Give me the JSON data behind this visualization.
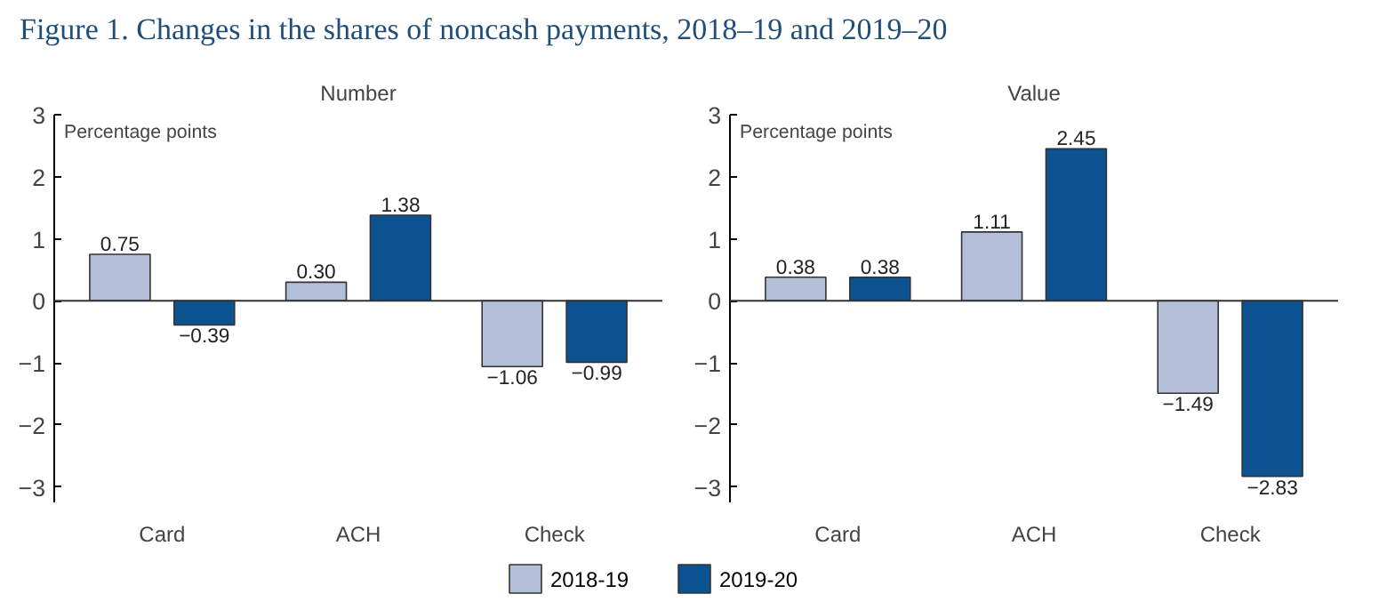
{
  "chart_data": [
    {
      "type": "bar",
      "title": "Figure 1. Changes in the shares of noncash payments, 2018–19 and 2019–20",
      "subtitle": "Number",
      "ylabel": "Percentage points",
      "categories": [
        "Card",
        "ACH",
        "Check"
      ],
      "series": [
        {
          "name": "2018-19",
          "color": "#b4c0da",
          "values": [
            0.75,
            0.3,
            -1.06
          ],
          "value_labels": [
            "0.75",
            "0.30",
            "−1.06"
          ]
        },
        {
          "name": "2019-20",
          "color": "#0c5290",
          "values": [
            -0.39,
            1.38,
            -0.99
          ],
          "value_labels": [
            "−0.39",
            "1.38",
            "−0.99"
          ]
        }
      ],
      "ylim": [
        -3.25,
        3
      ],
      "yticks": [
        -3,
        -2,
        -1,
        0,
        1,
        2,
        3
      ],
      "legend": "bottom"
    },
    {
      "type": "bar",
      "subtitle": "Value",
      "ylabel": "Percentage points",
      "categories": [
        "Card",
        "ACH",
        "Check"
      ],
      "series": [
        {
          "name": "2018-19",
          "color": "#b4c0da",
          "values": [
            0.38,
            1.11,
            -1.49
          ],
          "value_labels": [
            "0.38",
            "1.11",
            "−1.49"
          ]
        },
        {
          "name": "2019-20",
          "color": "#0c5290",
          "values": [
            0.38,
            2.45,
            -2.83
          ],
          "value_labels": [
            "0.38",
            "2.45",
            "−2.83"
          ]
        }
      ],
      "ylim": [
        -3.25,
        3
      ],
      "yticks": [
        -3,
        -2,
        -1,
        0,
        1,
        2,
        3
      ],
      "legend": "bottom"
    }
  ]
}
